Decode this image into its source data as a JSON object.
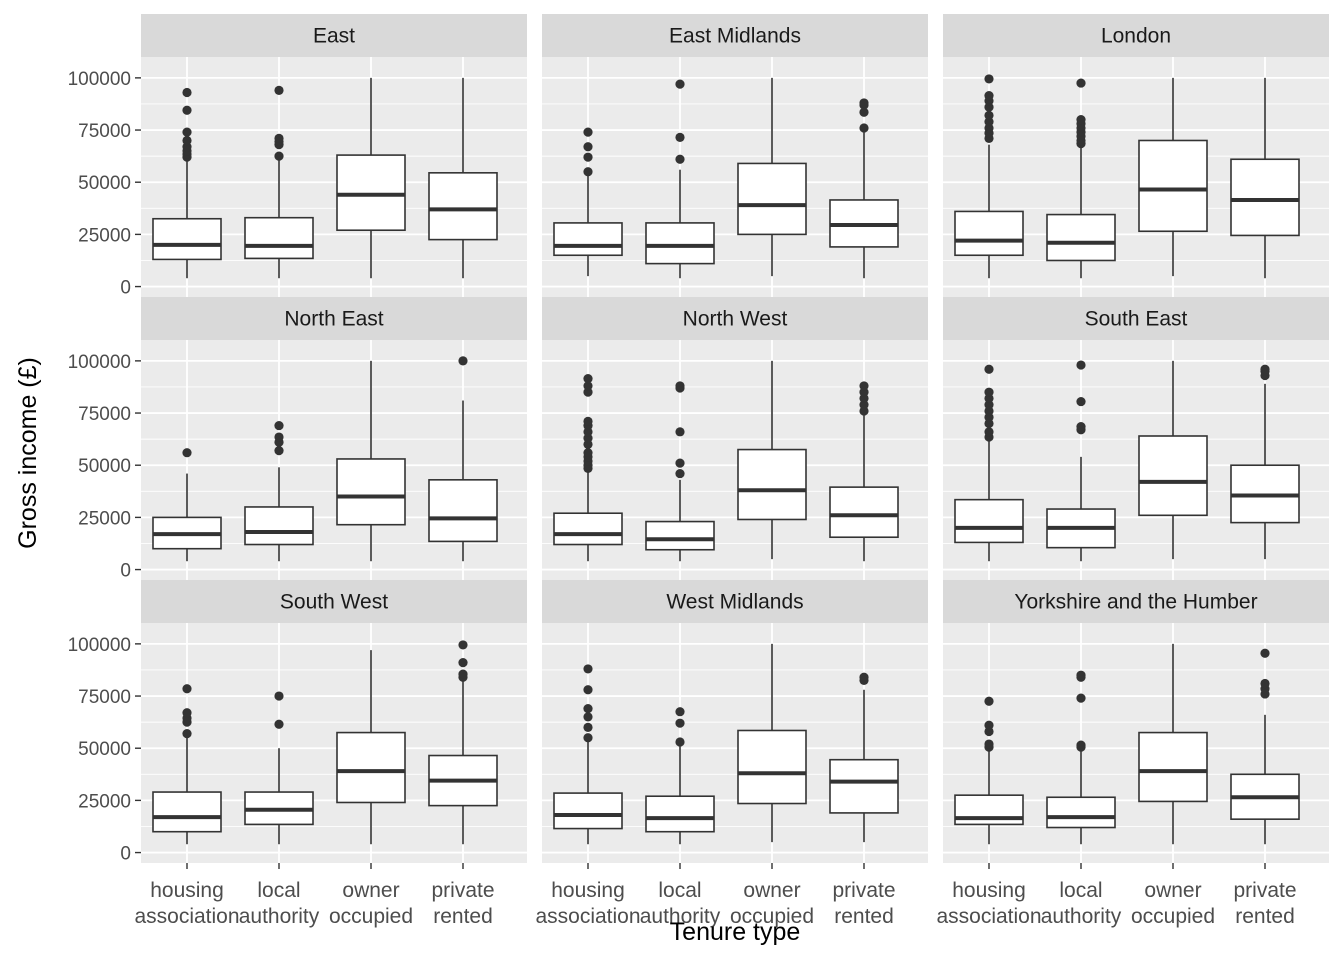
{
  "chart_data": {
    "type": "boxplot",
    "title": "",
    "xlabel": "Tenure type",
    "ylabel": "Gross income (£)",
    "ylim": [
      -5000,
      110000
    ],
    "y_ticks": [
      0,
      25000,
      50000,
      75000,
      100000
    ],
    "y_tick_labels": [
      "0",
      "25000",
      "50000",
      "75000",
      "100000"
    ],
    "categories": [
      [
        "housing",
        "association"
      ],
      [
        "local",
        "authority"
      ],
      [
        "owner",
        "occupied"
      ],
      [
        "private",
        "rented"
      ]
    ],
    "grid": true,
    "legend": "none",
    "facet_layout": {
      "rows": 3,
      "cols": 3
    },
    "panels": [
      {
        "name": "East",
        "boxes": [
          {
            "min": 4000,
            "q1": 13000,
            "median": 20000,
            "q3": 32500,
            "max": 61000,
            "outliers": [
              62000,
              63500,
              65000,
              67000,
              70000,
              74000,
              84500,
              93000
            ]
          },
          {
            "min": 4000,
            "q1": 13500,
            "median": 19500,
            "q3": 33000,
            "max": 61000,
            "outliers": [
              62500,
              68000,
              69500,
              71000,
              94000
            ]
          },
          {
            "min": 4000,
            "q1": 27000,
            "median": 44000,
            "q3": 63000,
            "max": 100000,
            "outliers": []
          },
          {
            "min": 4000,
            "q1": 22500,
            "median": 37000,
            "q3": 54500,
            "max": 100000,
            "outliers": []
          }
        ]
      },
      {
        "name": "East Midlands",
        "boxes": [
          {
            "min": 5000,
            "q1": 15000,
            "median": 19500,
            "q3": 30500,
            "max": 53000,
            "outliers": [
              55000,
              62000,
              67000,
              74000
            ]
          },
          {
            "min": 4000,
            "q1": 11000,
            "median": 19500,
            "q3": 30500,
            "max": 56000,
            "outliers": [
              61000,
              71500,
              97000
            ]
          },
          {
            "min": 5000,
            "q1": 25000,
            "median": 39000,
            "q3": 59000,
            "max": 100000,
            "outliers": []
          },
          {
            "min": 4000,
            "q1": 19000,
            "median": 29500,
            "q3": 41500,
            "max": 74000,
            "outliers": [
              76000,
              83500,
              87000,
              88000
            ]
          }
        ]
      },
      {
        "name": "London",
        "boxes": [
          {
            "min": 4000,
            "q1": 15000,
            "median": 22000,
            "q3": 36000,
            "max": 68000,
            "outliers": [
              71000,
              73500,
              76000,
              79000,
              82000,
              86000,
              89000,
              91500,
              99500
            ]
          },
          {
            "min": 4000,
            "q1": 12500,
            "median": 21000,
            "q3": 34500,
            "max": 67000,
            "outliers": [
              68500,
              70000,
              72000,
              74000,
              76000,
              78000,
              80000,
              97500
            ]
          },
          {
            "min": 5000,
            "q1": 26500,
            "median": 46500,
            "q3": 70000,
            "max": 100000,
            "outliers": []
          },
          {
            "min": 4000,
            "q1": 24500,
            "median": 41500,
            "q3": 61000,
            "max": 100000,
            "outliers": []
          }
        ]
      },
      {
        "name": "North East",
        "boxes": [
          {
            "min": 4000,
            "q1": 10000,
            "median": 17000,
            "q3": 25000,
            "max": 46000,
            "outliers": [
              56000
            ]
          },
          {
            "min": 4000,
            "q1": 12000,
            "median": 18000,
            "q3": 30000,
            "max": 49000,
            "outliers": [
              57000,
              61000,
              63500,
              69000
            ]
          },
          {
            "min": 4000,
            "q1": 21500,
            "median": 35000,
            "q3": 53000,
            "max": 100000,
            "outliers": []
          },
          {
            "min": 4000,
            "q1": 13500,
            "median": 24500,
            "q3": 43000,
            "max": 81000,
            "outliers": [
              100000
            ]
          }
        ]
      },
      {
        "name": "North West",
        "boxes": [
          {
            "min": 4000,
            "q1": 12000,
            "median": 17000,
            "q3": 27000,
            "max": 47000,
            "outliers": [
              48500,
              50000,
              52000,
              54000,
              56000,
              60000,
              63000,
              66000,
              69000,
              71000,
              85000,
              88000,
              91500
            ]
          },
          {
            "min": 4000,
            "q1": 9500,
            "median": 14500,
            "q3": 23000,
            "max": 43000,
            "outliers": [
              46000,
              51000,
              66000,
              87000,
              88000
            ]
          },
          {
            "min": 5000,
            "q1": 24000,
            "median": 38000,
            "q3": 57500,
            "max": 100000,
            "outliers": []
          },
          {
            "min": 4000,
            "q1": 15500,
            "median": 26000,
            "q3": 39500,
            "max": 74000,
            "outliers": [
              76000,
              79000,
              82000,
              85000,
              88000
            ]
          }
        ]
      },
      {
        "name": "South East",
        "boxes": [
          {
            "min": 4000,
            "q1": 13000,
            "median": 20000,
            "q3": 33500,
            "max": 62000,
            "outliers": [
              63500,
              66000,
              70000,
              73000,
              76000,
              79000,
              82000,
              85000,
              96000
            ]
          },
          {
            "min": 4000,
            "q1": 10500,
            "median": 20000,
            "q3": 29000,
            "max": 54000,
            "outliers": [
              67000,
              68500,
              80500,
              98000
            ]
          },
          {
            "min": 5000,
            "q1": 26000,
            "median": 42000,
            "q3": 64000,
            "max": 100000,
            "outliers": []
          },
          {
            "min": 5000,
            "q1": 22500,
            "median": 35500,
            "q3": 50000,
            "max": 89000,
            "outliers": [
              93000,
              95000,
              96000
            ]
          }
        ]
      },
      {
        "name": "South West",
        "boxes": [
          {
            "min": 4000,
            "q1": 10000,
            "median": 17000,
            "q3": 29000,
            "max": 55000,
            "outliers": [
              57000,
              62500,
              64500,
              67000,
              78500
            ]
          },
          {
            "min": 4000,
            "q1": 13500,
            "median": 20500,
            "q3": 29000,
            "max": 50000,
            "outliers": [
              61500,
              75000
            ]
          },
          {
            "min": 4000,
            "q1": 24000,
            "median": 39000,
            "q3": 57500,
            "max": 97000,
            "outliers": []
          },
          {
            "min": 4000,
            "q1": 22500,
            "median": 34500,
            "q3": 46500,
            "max": 82000,
            "outliers": [
              84000,
              85500,
              91000,
              99500
            ]
          }
        ]
      },
      {
        "name": "West Midlands",
        "boxes": [
          {
            "min": 4000,
            "q1": 11500,
            "median": 18000,
            "q3": 28500,
            "max": 53000,
            "outliers": [
              55000,
              60000,
              65000,
              69000,
              78000,
              88000
            ]
          },
          {
            "min": 4000,
            "q1": 10000,
            "median": 16500,
            "q3": 27000,
            "max": 51000,
            "outliers": [
              53000,
              62000,
              67500
            ]
          },
          {
            "min": 5000,
            "q1": 23500,
            "median": 38000,
            "q3": 58500,
            "max": 100000,
            "outliers": []
          },
          {
            "min": 5000,
            "q1": 19000,
            "median": 34000,
            "q3": 44500,
            "max": 78000,
            "outliers": [
              82500,
              84000
            ]
          }
        ]
      },
      {
        "name": "Yorkshire and the Humber",
        "boxes": [
          {
            "min": 4000,
            "q1": 13500,
            "median": 16500,
            "q3": 27500,
            "max": 49000,
            "outliers": [
              50500,
              52000,
              58000,
              61000,
              72500
            ]
          },
          {
            "min": 4000,
            "q1": 12000,
            "median": 17000,
            "q3": 26500,
            "max": 49000,
            "outliers": [
              50500,
              51500,
              74000,
              84000,
              85000
            ]
          },
          {
            "min": 4000,
            "q1": 24500,
            "median": 39000,
            "q3": 57500,
            "max": 100000,
            "outliers": []
          },
          {
            "min": 4000,
            "q1": 16000,
            "median": 26500,
            "q3": 37500,
            "max": 66000,
            "outliers": [
              76000,
              78500,
              81000,
              95500
            ]
          }
        ]
      }
    ]
  }
}
